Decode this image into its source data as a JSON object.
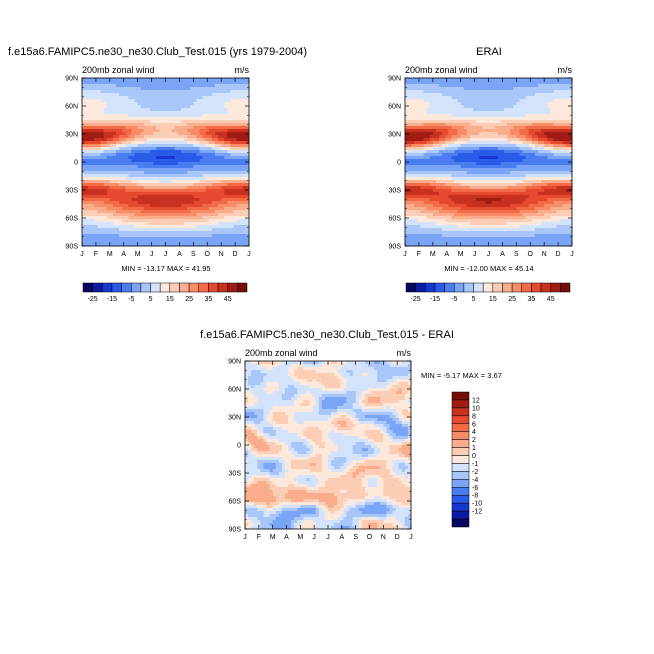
{
  "chart_data": [
    {
      "type": "heatmap",
      "id": "model",
      "title": "f.e15a6.FAMIPC5.ne30_ne30.Club_Test.015 (yrs 1979-2004)",
      "left_label": "200mb zonal wind",
      "right_label": "m/s",
      "x_ticks": [
        "J",
        "F",
        "M",
        "A",
        "M",
        "J",
        "J",
        "A",
        "S",
        "O",
        "N",
        "D",
        "J"
      ],
      "y_ticks": [
        "90N",
        "60N",
        "30N",
        "0",
        "30S",
        "60S",
        "90S"
      ],
      "ylim": [
        -90,
        90
      ],
      "minmax_text": "MIN = -13.17 MAX = 41.95",
      "field": "climatology",
      "jet_scale": 1.0
    },
    {
      "type": "heatmap",
      "id": "obs",
      "title": "ERAI",
      "left_label": "200mb zonal wind",
      "right_label": "m/s",
      "x_ticks": [
        "J",
        "F",
        "M",
        "A",
        "M",
        "J",
        "J",
        "A",
        "S",
        "O",
        "N",
        "D",
        "J"
      ],
      "y_ticks": [
        "90N",
        "60N",
        "30N",
        "0",
        "30S",
        "60S",
        "90S"
      ],
      "ylim": [
        -90,
        90
      ],
      "minmax_text": "MIN = -12.00 MAX = 45.14",
      "field": "climatology",
      "jet_scale": 1.05
    },
    {
      "type": "heatmap",
      "id": "diff",
      "title": "f.e15a6.FAMIPC5.ne30_ne30.Club_Test.015 - ERAI",
      "left_label": "200mb zonal wind",
      "right_label": "m/s",
      "x_ticks": [
        "J",
        "F",
        "M",
        "A",
        "M",
        "J",
        "J",
        "A",
        "S",
        "O",
        "N",
        "D",
        "J"
      ],
      "y_ticks": [
        "90N",
        "60N",
        "30N",
        "0",
        "30S",
        "60S",
        "90S"
      ],
      "ylim": [
        -90,
        90
      ],
      "minmax_text": "MIN = -5.17 MAX = 3.67",
      "field": "difference"
    }
  ],
  "colorbars": {
    "main": {
      "labels": [
        "-25",
        "-15",
        "-5",
        "5",
        "15",
        "25",
        "35",
        "45"
      ],
      "colors": [
        "#08065e",
        "#0b1ba3",
        "#1637d0",
        "#2a5ae8",
        "#4a7ef0",
        "#7aa4f5",
        "#a9c6f8",
        "#d2e3fb",
        "#fde9dc",
        "#fbcdb4",
        "#f9ad8c",
        "#f78c67",
        "#f26a47",
        "#e54a30",
        "#c8301f",
        "#a01c12",
        "#750d08"
      ]
    },
    "diff": {
      "labels": [
        "12",
        "10",
        "8",
        "6",
        "4",
        "2",
        "1",
        "0",
        "-1",
        "-2",
        "-4",
        "-6",
        "-8",
        "-10",
        "-12"
      ],
      "colors": [
        "#750d08",
        "#a01c12",
        "#c8301f",
        "#e54a30",
        "#f26a47",
        "#f78c67",
        "#f9ad8c",
        "#fbcdb4",
        "#fde9dc",
        "#d2e3fb",
        "#a9c6f8",
        "#7aa4f5",
        "#4a7ef0",
        "#2a5ae8",
        "#1637d0",
        "#0b1ba3",
        "#08065e"
      ]
    }
  }
}
